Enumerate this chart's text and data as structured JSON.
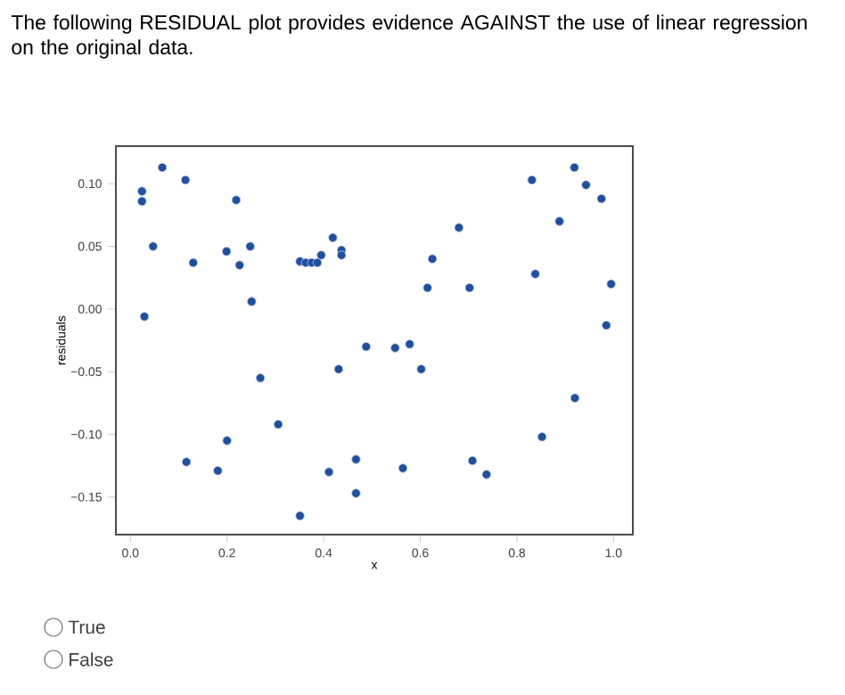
{
  "chart_data": {
    "type": "scatter",
    "title": "The following RESIDUAL plot provides evidence AGAINST the use of linear regression on the original data.",
    "xlabel": "x",
    "ylabel": "residuals",
    "annotations": [
      "True",
      "False"
    ],
    "x": [
      0.024,
      0.024,
      0.066,
      0.114,
      0.219,
      0.047,
      0.199,
      0.13,
      0.226,
      0.248,
      0.251,
      0.029,
      0.419,
      0.351,
      0.363,
      0.375,
      0.387,
      0.395,
      0.437,
      0.437,
      0.488,
      0.548,
      0.578,
      0.431,
      0.602,
      0.269,
      0.306,
      0.2,
      0.116,
      0.181,
      0.411,
      0.467,
      0.467,
      0.351,
      0.564,
      0.68,
      0.625,
      0.615,
      0.702,
      0.831,
      0.919,
      0.943,
      0.975,
      0.888,
      0.838,
      0.995,
      0.985,
      0.92,
      0.852,
      0.708,
      0.737
    ],
    "values": [
      0.094,
      0.086,
      0.113,
      0.103,
      0.087,
      0.05,
      0.046,
      0.037,
      0.035,
      0.05,
      0.006,
      -0.006,
      0.057,
      0.038,
      0.037,
      0.037,
      0.037,
      0.043,
      0.047,
      0.043,
      -0.03,
      -0.031,
      -0.028,
      -0.048,
      -0.048,
      -0.055,
      -0.092,
      -0.105,
      -0.122,
      -0.129,
      -0.13,
      -0.12,
      -0.147,
      -0.165,
      -0.127,
      0.065,
      0.04,
      0.017,
      0.017,
      0.103,
      0.113,
      0.099,
      0.088,
      0.07,
      0.028,
      0.02,
      -0.013,
      -0.071,
      -0.102,
      -0.121,
      -0.132
    ],
    "color": "#1f4fa0",
    "xlim": [
      -0.03,
      1.04
    ],
    "ylim": [
      -0.18,
      0.13
    ],
    "xticks": [
      {
        "value": 0,
        "label": "0.0"
      },
      0.2,
      0.4,
      0.6,
      0.8,
      {
        "value": 1,
        "label": "1.0"
      }
    ],
    "yticks": [
      {
        "value": -0.15,
        "label": "−0.15"
      },
      {
        "value": -0.1,
        "label": "−0.10"
      },
      {
        "value": -0.05,
        "label": "−0.05"
      },
      {
        "value": 0,
        "label": "0.00"
      },
      0.05,
      {
        "value": 0.1,
        "label": "0.10"
      }
    ],
    "grid": false
  }
}
